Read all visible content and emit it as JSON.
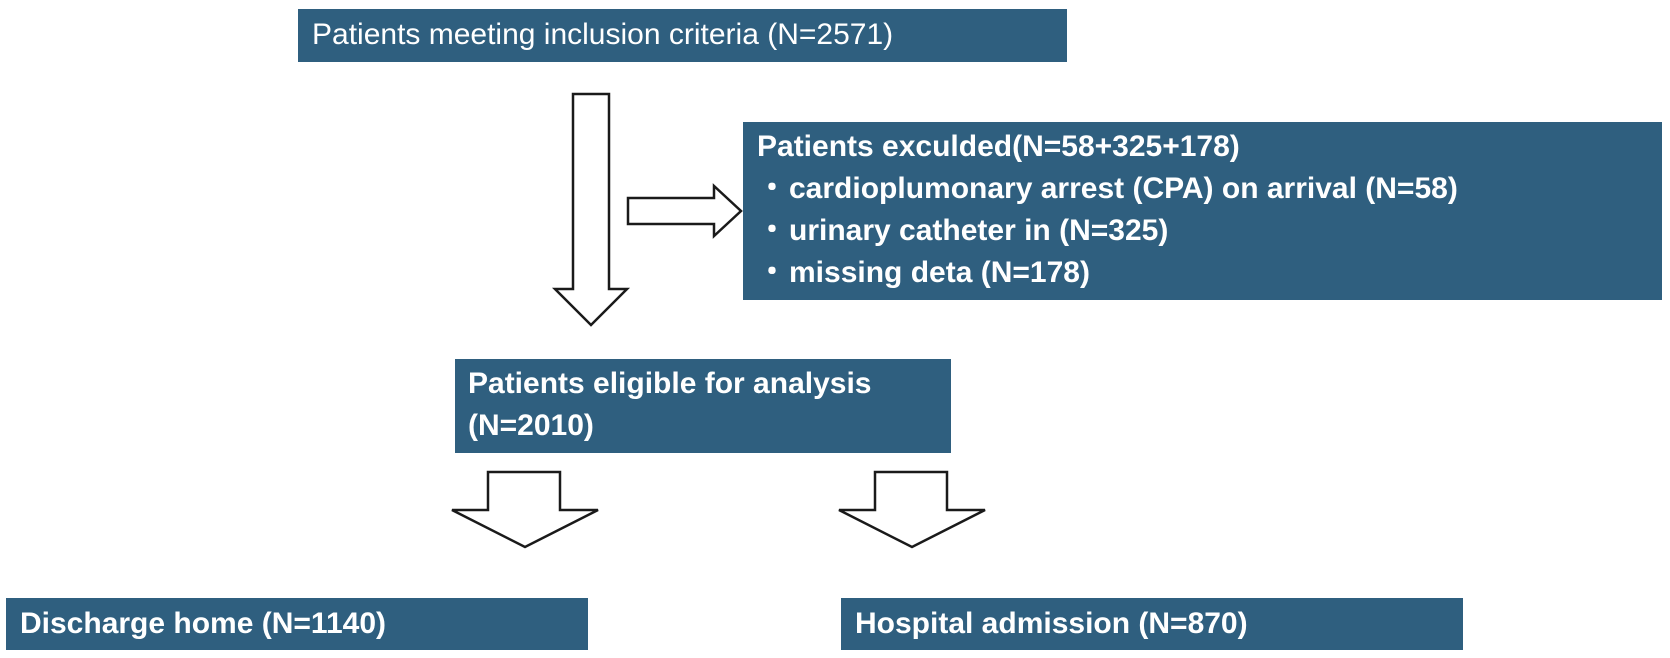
{
  "inclusion": {
    "text": "Patients meeting inclusion criteria (N=2571)"
  },
  "excluded": {
    "title": "Patients exculded(N=58+325+178)",
    "bullet_glyph": "・",
    "items": [
      "cardioplumonary arrest (CPA) on arrival (N=58)",
      "urinary catheter in (N=325)",
      "missing deta (N=178)"
    ]
  },
  "eligible": {
    "line1": "Patients eligible for analysis",
    "line2": "(N=2010)"
  },
  "outcomes": {
    "home": "Discharge home (N=1140)",
    "admission": "Hospital admission (N=870)"
  },
  "colors": {
    "box_fill": "#2f5f7f",
    "box_text": "#ffffff",
    "arrow_stroke": "#1a1a1a",
    "arrow_fill": "#ffffff"
  }
}
